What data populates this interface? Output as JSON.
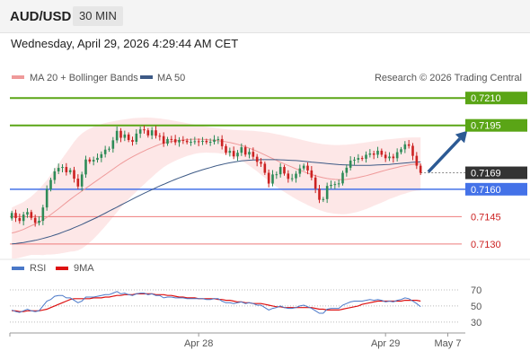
{
  "header": {
    "pair": "AUD/USD",
    "interval": "30 MIN",
    "datetime": "Wednesday, April 29, 2026 4:29:44 AM CET"
  },
  "colors": {
    "resistance": "#5aa516",
    "support": "#4472e8",
    "target": "#ee7b7b",
    "bollinger": "#fbd3d3",
    "ma20": "#ef9a9a",
    "ma50": "#3d5a86",
    "bull": "#2e8b57",
    "bear": "#cc2222",
    "current": "#333333",
    "arrow": "#2c5a94",
    "rsi": "#4a78c8",
    "rsi_ma": "#dd1111"
  },
  "legend": {
    "ma20_label": "MA 20 + Bollinger Bands",
    "ma50_label": "MA 50",
    "source": "Research © 2026 Trading Central"
  },
  "chart_data": [
    {
      "type": "candlestick",
      "y_range": [
        0.7125,
        0.7216
      ],
      "levels": [
        {
          "value": 0.721,
          "label": "0.7210",
          "kind": "resistance"
        },
        {
          "value": 0.7195,
          "label": "0.7195",
          "kind": "resistance"
        },
        {
          "value": 0.7169,
          "label": "0.7169",
          "kind": "current"
        },
        {
          "value": 0.716,
          "label": "0.7160",
          "kind": "support"
        },
        {
          "value": 0.7145,
          "label": "0.7145",
          "kind": "target"
        },
        {
          "value": 0.713,
          "label": "0.7130",
          "kind": "target"
        }
      ],
      "x_labels": [
        {
          "label": "Apr 28",
          "index": 48
        },
        {
          "label": "Apr 29",
          "index": 96
        },
        {
          "label": "May 7",
          "index": 112
        }
      ],
      "close": [
        0.7147,
        0.71442,
        0.71426,
        0.71461,
        0.71475,
        0.71443,
        0.71416,
        0.71427,
        0.715,
        0.716,
        0.71651,
        0.71698,
        0.71717,
        0.71722,
        0.71693,
        0.71705,
        0.71658,
        0.71615,
        0.71681,
        0.71763,
        0.71752,
        0.71761,
        0.71772,
        0.71792,
        0.71817,
        0.71822,
        0.71868,
        0.7192,
        0.71882,
        0.719,
        0.7187,
        0.7186,
        0.71905,
        0.71928,
        0.71923,
        0.71895,
        0.71923,
        0.71893,
        0.71891,
        0.7185,
        0.71875,
        0.71874,
        0.71857,
        0.7187,
        0.71866,
        0.71858,
        0.7186,
        0.71863,
        0.7186,
        0.71865,
        0.71858,
        0.7186,
        0.71872,
        0.71875,
        0.71836,
        0.718,
        0.7181,
        0.7178,
        0.718,
        0.7183,
        0.7179,
        0.71805,
        0.71778,
        0.7175,
        0.7174,
        0.7169,
        0.71631,
        0.71681,
        0.71682,
        0.71722,
        0.71686,
        0.71657,
        0.7166,
        0.71685,
        0.71714,
        0.71729,
        0.71703,
        0.71664,
        0.71603,
        0.71542,
        0.71546,
        0.71618,
        0.71624,
        0.71628,
        0.71632,
        0.7169,
        0.71718,
        0.71757,
        0.71762,
        0.71771,
        0.71767,
        0.71789,
        0.71796,
        0.71789,
        0.71811,
        0.71789,
        0.7177,
        0.71779,
        0.7177,
        0.71803,
        0.71819,
        0.71846,
        0.71838,
        0.71783,
        0.71729,
        0.7169
      ],
      "open": [
        0.7144,
        0.7147,
        0.71442,
        0.71426,
        0.71461,
        0.71475,
        0.71443,
        0.71416,
        0.71427,
        0.715,
        0.716,
        0.71651,
        0.71698,
        0.71717,
        0.71722,
        0.71693,
        0.71705,
        0.71658,
        0.71615,
        0.71681,
        0.71763,
        0.71752,
        0.71761,
        0.71772,
        0.71792,
        0.71817,
        0.71822,
        0.71868,
        0.7192,
        0.71882,
        0.719,
        0.7187,
        0.7186,
        0.71905,
        0.71928,
        0.71923,
        0.71895,
        0.71923,
        0.71893,
        0.71891,
        0.7185,
        0.71875,
        0.71874,
        0.71857,
        0.7187,
        0.71866,
        0.71858,
        0.7186,
        0.71863,
        0.7186,
        0.71865,
        0.71858,
        0.7186,
        0.71872,
        0.71875,
        0.71836,
        0.718,
        0.7181,
        0.7178,
        0.718,
        0.7183,
        0.7179,
        0.71805,
        0.71778,
        0.7175,
        0.7174,
        0.7169,
        0.71631,
        0.71681,
        0.71682,
        0.71722,
        0.71686,
        0.71657,
        0.7166,
        0.71685,
        0.71714,
        0.71729,
        0.71703,
        0.71664,
        0.71603,
        0.71542,
        0.71546,
        0.71618,
        0.71624,
        0.71628,
        0.71632,
        0.7169,
        0.71718,
        0.71757,
        0.71762,
        0.71771,
        0.71767,
        0.71789,
        0.71796,
        0.71789,
        0.71811,
        0.71789,
        0.7177,
        0.71779,
        0.7177,
        0.71803,
        0.71819,
        0.71846,
        0.71838,
        0.71783,
        0.71729
      ],
      "ma20": [
        0.7136,
        0.71365,
        0.71372,
        0.7138,
        0.7139,
        0.714,
        0.7141,
        0.7142,
        0.71432,
        0.71446,
        0.71461,
        0.71477,
        0.71493,
        0.7151,
        0.71527,
        0.71544,
        0.7156,
        0.71575,
        0.7159,
        0.71605,
        0.7162,
        0.71635,
        0.7165,
        0.71665,
        0.7168,
        0.71695,
        0.7171,
        0.71725,
        0.7174,
        0.71753,
        0.71766,
        0.71778,
        0.71789,
        0.718,
        0.7181,
        0.7182,
        0.71829,
        0.71838,
        0.71846,
        0.71853,
        0.71858,
        0.71862,
        0.71865,
        0.71868,
        0.7187,
        0.71872,
        0.71873,
        0.71874,
        0.71874,
        0.71873,
        0.71872,
        0.7187,
        0.71868,
        0.71866,
        0.71863,
        0.7186,
        0.71856,
        0.71851,
        0.71846,
        0.7184,
        0.71833,
        0.71825,
        0.71817,
        0.71808,
        0.71798,
        0.71788,
        0.71778,
        0.71768,
        0.71758,
        0.71748,
        0.71739,
        0.7173,
        0.71721,
        0.71712,
        0.71704,
        0.71696,
        0.71688,
        0.71681,
        0.71674,
        0.71668,
        0.71663,
        0.71659,
        0.71656,
        0.71654,
        0.71653,
        0.71653,
        0.71654,
        0.71657,
        0.7166,
        0.71664,
        0.71669,
        0.71674,
        0.7168,
        0.71686,
        0.71692,
        0.71698,
        0.71704,
        0.7171,
        0.71715,
        0.7172,
        0.71725,
        0.71729,
        0.71733,
        0.71736,
        0.71738,
        0.71739
      ],
      "bb_upper": [
        0.715,
        0.7151,
        0.7152,
        0.7153,
        0.71545,
        0.7156,
        0.7158,
        0.716,
        0.71625,
        0.7165,
        0.7168,
        0.7171,
        0.7174,
        0.7177,
        0.718,
        0.7183,
        0.7186,
        0.71885,
        0.71905,
        0.7192,
        0.71932,
        0.71942,
        0.7195,
        0.71957,
        0.71963,
        0.71968,
        0.71972,
        0.71976,
        0.7198,
        0.71983,
        0.71986,
        0.71989,
        0.71991,
        0.71992,
        0.71993,
        0.71993,
        0.71992,
        0.7199,
        0.71988,
        0.71985,
        0.71982,
        0.71978,
        0.71974,
        0.7197,
        0.71966,
        0.71962,
        0.71958,
        0.71954,
        0.7195,
        0.71946,
        0.71943,
        0.7194,
        0.71937,
        0.71934,
        0.71931,
        0.71929,
        0.71927,
        0.71925,
        0.71924,
        0.71923,
        0.71922,
        0.71921,
        0.7192,
        0.71918,
        0.71916,
        0.71913,
        0.7191,
        0.71906,
        0.71902,
        0.71898,
        0.71893,
        0.71888,
        0.71883,
        0.71878,
        0.71873,
        0.71868,
        0.71863,
        0.71858,
        0.71854,
        0.7185,
        0.71847,
        0.71845,
        0.71843,
        0.71842,
        0.71842,
        0.71843,
        0.71844,
        0.71846,
        0.71848,
        0.71851,
        0.71854,
        0.71857,
        0.7186,
        0.71863,
        0.71866,
        0.71869,
        0.71872,
        0.71874,
        0.71876,
        0.71878,
        0.7188,
        0.71882,
        0.71883,
        0.71884,
        0.71884,
        0.71884
      ],
      "bb_lower": [
        0.7122,
        0.7122,
        0.71224,
        0.7123,
        0.71235,
        0.7124,
        0.7124,
        0.7124,
        0.71239,
        0.71242,
        0.71242,
        0.71244,
        0.71246,
        0.7125,
        0.71254,
        0.71258,
        0.7126,
        0.71265,
        0.71275,
        0.7129,
        0.71308,
        0.71328,
        0.7135,
        0.71373,
        0.71397,
        0.71422,
        0.71448,
        0.71474,
        0.715,
        0.71523,
        0.71546,
        0.71567,
        0.71587,
        0.71608,
        0.71627,
        0.71647,
        0.71666,
        0.71686,
        0.71704,
        0.71721,
        0.71734,
        0.71746,
        0.71756,
        0.71766,
        0.71774,
        0.71782,
        0.71788,
        0.71794,
        0.71798,
        0.718,
        0.71801,
        0.718,
        0.71799,
        0.71798,
        0.71795,
        0.71791,
        0.71785,
        0.71777,
        0.71768,
        0.71757,
        0.71744,
        0.71729,
        0.71714,
        0.71698,
        0.7168,
        0.71663,
        0.71646,
        0.7163,
        0.71614,
        0.71598,
        0.71585,
        0.71572,
        0.71559,
        0.71546,
        0.71535,
        0.71524,
        0.71513,
        0.71504,
        0.71494,
        0.71486,
        0.71479,
        0.71473,
        0.71469,
        0.71466,
        0.71464,
        0.71463,
        0.71464,
        0.71468,
        0.71472,
        0.71477,
        0.71484,
        0.71491,
        0.715,
        0.71509,
        0.71518,
        0.71527,
        0.71536,
        0.71546,
        0.71554,
        0.71562,
        0.7157,
        0.71576,
        0.71583,
        0.71588,
        0.71592,
        0.71594
      ],
      "ma50": [
        0.713,
        0.71302,
        0.71305,
        0.71308,
        0.71312,
        0.71316,
        0.7132,
        0.71325,
        0.7133,
        0.71336,
        0.71342,
        0.71349,
        0.71356,
        0.71364,
        0.71372,
        0.7138,
        0.71389,
        0.71398,
        0.71407,
        0.71417,
        0.71427,
        0.71437,
        0.71447,
        0.71458,
        0.71469,
        0.7148,
        0.71491,
        0.71502,
        0.71513,
        0.71524,
        0.71535,
        0.71546,
        0.71557,
        0.71568,
        0.71578,
        0.71588,
        0.71598,
        0.71608,
        0.71618,
        0.71627,
        0.71636,
        0.71645,
        0.71654,
        0.71662,
        0.7167,
        0.71678,
        0.71686,
        0.71693,
        0.717,
        0.71707,
        0.71713,
        0.71719,
        0.71725,
        0.71731,
        0.71736,
        0.71741,
        0.71745,
        0.71749,
        0.71752,
        0.71755,
        0.71757,
        0.71759,
        0.7176,
        0.71761,
        0.71762,
        0.71762,
        0.71762,
        0.71762,
        0.71762,
        0.71761,
        0.7176,
        0.71759,
        0.71758,
        0.71757,
        0.71755,
        0.71753,
        0.71751,
        0.71749,
        0.71747,
        0.71745,
        0.71743,
        0.71741,
        0.71739,
        0.71737,
        0.71735,
        0.71734,
        0.71733,
        0.71732,
        0.71731,
        0.71731,
        0.71731,
        0.71731,
        0.71731,
        0.71732,
        0.71733,
        0.71734,
        0.71735,
        0.71736,
        0.71738,
        0.7174,
        0.71742,
        0.71744,
        0.71746,
        0.71748,
        0.71749,
        0.7175
      ],
      "forecast_arrow": {
        "from_index": 107,
        "from_value": 0.71695,
        "to_index": 117,
        "to_value": 0.7192
      }
    },
    {
      "type": "line",
      "y_range": [
        22,
        80
      ],
      "y_ticks": [
        70,
        50,
        30
      ],
      "legend": [
        "RSI",
        "9MA"
      ],
      "rsi": [
        45,
        43,
        42,
        44,
        46,
        44,
        43,
        44,
        50,
        56,
        58,
        62,
        63,
        63,
        60,
        60,
        57,
        54,
        56,
        61,
        61,
        61,
        62,
        63,
        64,
        64,
        66,
        68,
        65,
        66,
        64,
        63,
        65,
        66,
        66,
        64,
        65,
        63,
        63,
        60,
        61,
        61,
        60,
        60,
        60,
        59,
        59,
        59,
        59,
        59,
        58,
        58,
        59,
        59,
        56,
        54,
        54,
        53,
        54,
        55,
        53,
        54,
        53,
        51,
        51,
        48,
        45,
        47,
        48,
        50,
        48,
        47,
        47,
        48,
        50,
        51,
        49,
        47,
        44,
        41,
        41,
        46,
        47,
        47,
        47,
        51,
        53,
        55,
        56,
        56,
        56,
        57,
        58,
        57,
        58,
        57,
        55,
        56,
        55,
        57,
        58,
        60,
        59,
        56,
        53,
        49
      ],
      "rsi_ma": [
        44,
        44,
        43,
        43,
        44,
        44,
        44,
        44,
        45,
        46,
        48,
        50,
        52,
        54,
        56,
        58,
        59,
        59,
        59,
        59,
        59,
        60,
        60,
        60,
        61,
        61,
        62,
        63,
        63,
        64,
        64,
        64,
        65,
        65,
        65,
        65,
        65,
        64,
        64,
        64,
        63,
        63,
        62,
        61,
        61,
        60,
        60,
        60,
        59,
        59,
        59,
        59,
        59,
        58,
        58,
        57,
        57,
        56,
        55,
        55,
        54,
        54,
        53,
        53,
        53,
        52,
        51,
        50,
        49,
        49,
        48,
        48,
        48,
        48,
        48,
        48,
        48,
        48,
        47,
        46,
        46,
        45,
        45,
        45,
        45,
        46,
        47,
        48,
        49,
        50,
        52,
        53,
        54,
        55,
        56,
        56,
        56,
        56,
        56,
        56,
        56,
        57,
        57,
        57,
        57,
        56
      ]
    }
  ]
}
